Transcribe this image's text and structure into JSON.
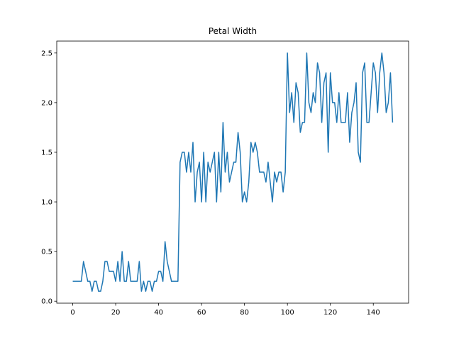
{
  "chart_data": {
    "type": "line",
    "title": "Petal Width",
    "xlabel": "",
    "ylabel": "",
    "xlim": [
      -7.45,
      156.45
    ],
    "ylim": [
      -0.02,
      2.62
    ],
    "xticks": [
      0,
      20,
      40,
      60,
      80,
      100,
      120,
      140
    ],
    "yticks": [
      0.0,
      0.5,
      1.0,
      1.5,
      2.0,
      2.5
    ],
    "ytick_labels": [
      "0.0",
      "0.5",
      "1.0",
      "1.5",
      "2.0",
      "2.5"
    ],
    "grid": false,
    "series": [
      {
        "color": "#1f77b4",
        "y": [
          0.2,
          0.2,
          0.2,
          0.2,
          0.2,
          0.4,
          0.3,
          0.2,
          0.2,
          0.1,
          0.2,
          0.2,
          0.1,
          0.1,
          0.2,
          0.4,
          0.4,
          0.3,
          0.3,
          0.3,
          0.2,
          0.4,
          0.2,
          0.5,
          0.2,
          0.2,
          0.4,
          0.2,
          0.2,
          0.2,
          0.2,
          0.4,
          0.1,
          0.2,
          0.1,
          0.2,
          0.2,
          0.1,
          0.2,
          0.2,
          0.3,
          0.3,
          0.2,
          0.6,
          0.4,
          0.3,
          0.2,
          0.2,
          0.2,
          0.2,
          1.4,
          1.5,
          1.5,
          1.3,
          1.5,
          1.3,
          1.6,
          1.0,
          1.3,
          1.4,
          1.0,
          1.5,
          1.0,
          1.4,
          1.3,
          1.4,
          1.5,
          1.0,
          1.5,
          1.1,
          1.8,
          1.3,
          1.5,
          1.2,
          1.3,
          1.4,
          1.4,
          1.7,
          1.5,
          1.0,
          1.1,
          1.0,
          1.2,
          1.6,
          1.5,
          1.6,
          1.5,
          1.3,
          1.3,
          1.3,
          1.2,
          1.4,
          1.2,
          1.0,
          1.3,
          1.2,
          1.3,
          1.3,
          1.1,
          1.3,
          2.5,
          1.9,
          2.1,
          1.8,
          2.2,
          2.1,
          1.7,
          1.8,
          1.8,
          2.5,
          2.0,
          1.9,
          2.1,
          2.0,
          2.4,
          2.3,
          1.8,
          2.2,
          2.3,
          1.5,
          2.3,
          2.0,
          2.0,
          1.8,
          2.1,
          1.8,
          1.8,
          1.8,
          2.1,
          1.6,
          1.9,
          2.0,
          2.2,
          1.5,
          1.4,
          2.3,
          2.4,
          1.8,
          1.8,
          2.1,
          2.4,
          2.3,
          1.9,
          2.3,
          2.5,
          2.3,
          1.9,
          2.0,
          2.3,
          1.8
        ]
      }
    ]
  }
}
